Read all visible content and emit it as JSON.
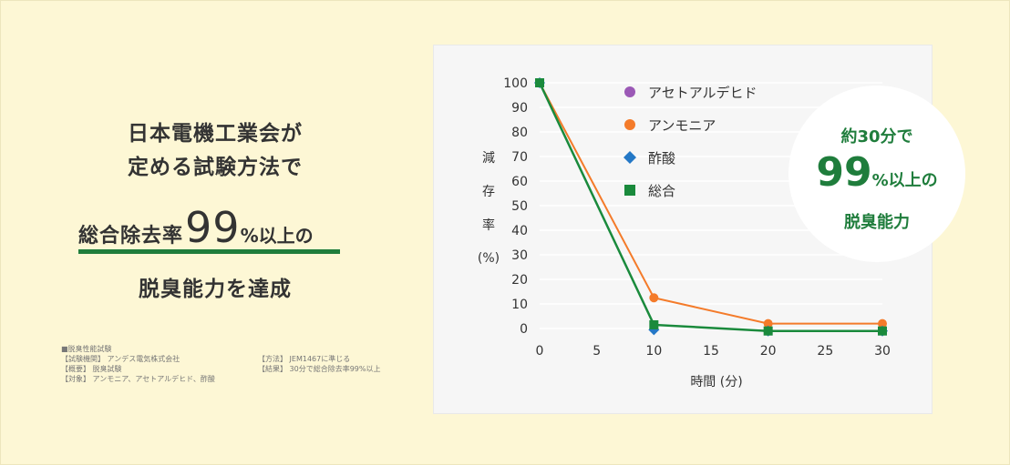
{
  "headline": {
    "line1": "日本電機工業会が",
    "line2": "定める試験方法で",
    "strong_prefix": "総合除去率",
    "strong_number": "99",
    "strong_suffix": "%以上の",
    "line4": "脱臭能力を達成"
  },
  "notes": {
    "left": [
      "■脱臭性能試験",
      "【試験機関】 アンデス電気株式会社",
      "【概要】 脱臭試験",
      "【対象】 アンモニア、アセトアルデヒド、酢酸"
    ],
    "right": [
      "【方法】 JEM1467に準じる",
      "【結果】 30分で総合除去率99%以上"
    ]
  },
  "badge": {
    "top": "約30分で",
    "big": "99",
    "suffix": "%以上の",
    "bottom": "脱臭能力"
  },
  "colors": {
    "background": "#fdf7d5",
    "accent_green": "#1f7d3c"
  },
  "chart_data": {
    "type": "line",
    "title": "",
    "xlabel": "時間 (分)",
    "ylabel": "減存率(%)",
    "ylabel_chars": [
      "減",
      "存",
      "率",
      "(%)"
    ],
    "xlim": [
      0,
      30
    ],
    "ylim": [
      0,
      100
    ],
    "x_ticks": [
      "0",
      "5",
      "10",
      "15",
      "20",
      "25",
      "30"
    ],
    "y_ticks": [
      "0",
      "10",
      "20",
      "30",
      "40",
      "50",
      "60",
      "70",
      "80",
      "90",
      "100"
    ],
    "grid": true,
    "legend_position": "top-left",
    "series": [
      {
        "name": "アセトアルデヒド",
        "color": "#9b59b6",
        "marker": "circle",
        "x": [
          0,
          10,
          20,
          30
        ],
        "y": [
          100,
          0,
          -1,
          -1
        ],
        "draw_line": false
      },
      {
        "name": "アンモニア",
        "color": "#f47b2a",
        "marker": "circle",
        "x": [
          0,
          10,
          20,
          30
        ],
        "y": [
          100,
          12.5,
          2,
          2
        ],
        "draw_line": true
      },
      {
        "name": "酢酸",
        "color": "#2478c6",
        "marker": "diamond",
        "x": [
          0,
          10,
          20,
          30
        ],
        "y": [
          100,
          -0.5,
          -1,
          -1
        ],
        "draw_line": false
      },
      {
        "name": "総合",
        "color": "#1a8a3c",
        "marker": "square",
        "x": [
          0,
          10,
          20,
          30
        ],
        "y": [
          100,
          1.5,
          -1,
          -1
        ],
        "draw_line": true
      }
    ]
  }
}
